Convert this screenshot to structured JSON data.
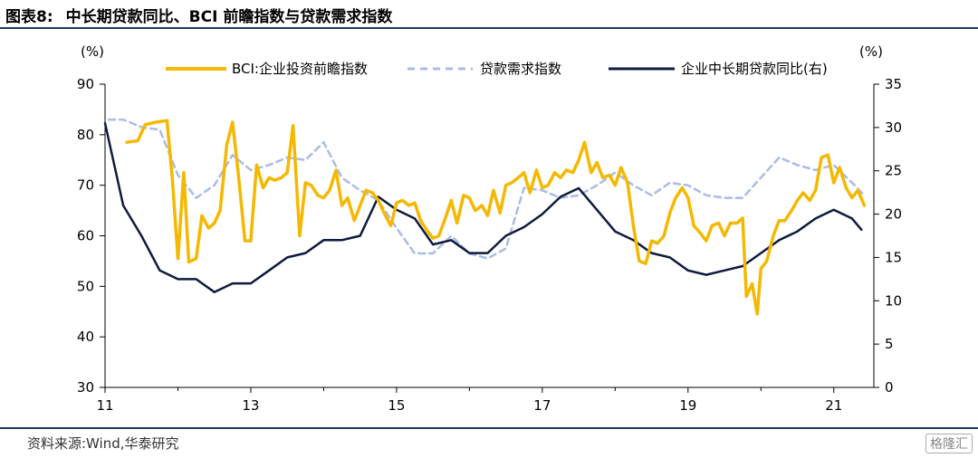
{
  "header": {
    "label": "图表8:",
    "title": "中长期贷款同比、BCI 前瞻指数与贷款需求指数"
  },
  "footer": {
    "source": "资料来源:Wind,华泰研究",
    "watermark": "格隆汇"
  },
  "colors": {
    "bci": "#F5B800",
    "demand": "#A9BCE3",
    "loan": "#0D1B3E",
    "axis": "#000000",
    "rule": "#1F3864"
  },
  "chart_data": {
    "type": "line",
    "y_left": {
      "unit": "(%)",
      "range": [
        30,
        90
      ],
      "ticks": [
        30,
        40,
        50,
        60,
        70,
        80,
        90
      ]
    },
    "y_right": {
      "unit": "(%)",
      "range": [
        0,
        35
      ],
      "ticks": [
        0,
        5,
        10,
        15,
        20,
        25,
        30,
        35
      ]
    },
    "x_axis": {
      "range": [
        2011.0,
        2021.55
      ],
      "ticks": [
        2011,
        2013,
        2015,
        2017,
        2019,
        2021
      ],
      "tick_labels": [
        "11",
        "13",
        "15",
        "17",
        "19",
        "21"
      ]
    },
    "legend_position": "top",
    "series": [
      {
        "name": "BCI:企业投资前瞻指数",
        "axis": "left",
        "style": "solid",
        "points": [
          [
            2011.3,
            78.5
          ],
          [
            2011.45,
            78.8
          ],
          [
            2011.55,
            82.0
          ],
          [
            2011.7,
            82.5
          ],
          [
            2011.85,
            82.8
          ],
          [
            2011.92,
            72.0
          ],
          [
            2012.0,
            55.5
          ],
          [
            2012.08,
            72.5
          ],
          [
            2012.15,
            54.8
          ],
          [
            2012.25,
            55.5
          ],
          [
            2012.33,
            64.0
          ],
          [
            2012.42,
            61.5
          ],
          [
            2012.5,
            62.5
          ],
          [
            2012.58,
            65.0
          ],
          [
            2012.67,
            78.0
          ],
          [
            2012.75,
            82.5
          ],
          [
            2012.83,
            72.0
          ],
          [
            2012.92,
            59.0
          ],
          [
            2013.0,
            59.0
          ],
          [
            2013.08,
            74.0
          ],
          [
            2013.17,
            69.5
          ],
          [
            2013.25,
            71.5
          ],
          [
            2013.33,
            71.0
          ],
          [
            2013.42,
            71.5
          ],
          [
            2013.5,
            72.5
          ],
          [
            2013.58,
            81.8
          ],
          [
            2013.67,
            60.0
          ],
          [
            2013.75,
            70.5
          ],
          [
            2013.83,
            70.0
          ],
          [
            2013.92,
            68.0
          ],
          [
            2014.0,
            67.5
          ],
          [
            2014.08,
            69.0
          ],
          [
            2014.17,
            73.0
          ],
          [
            2014.25,
            66.0
          ],
          [
            2014.33,
            67.5
          ],
          [
            2014.42,
            63.0
          ],
          [
            2014.5,
            66.0
          ],
          [
            2014.58,
            69.0
          ],
          [
            2014.67,
            68.5
          ],
          [
            2014.75,
            67.0
          ],
          [
            2014.83,
            64.5
          ],
          [
            2014.92,
            62.0
          ],
          [
            2015.0,
            66.5
          ],
          [
            2015.08,
            67.0
          ],
          [
            2015.17,
            66.0
          ],
          [
            2015.25,
            66.5
          ],
          [
            2015.33,
            63.0
          ],
          [
            2015.42,
            61.0
          ],
          [
            2015.5,
            59.5
          ],
          [
            2015.58,
            60.0
          ],
          [
            2015.67,
            63.5
          ],
          [
            2015.75,
            67.0
          ],
          [
            2015.83,
            62.5
          ],
          [
            2015.92,
            68.0
          ],
          [
            2016.0,
            67.5
          ],
          [
            2016.08,
            65.0
          ],
          [
            2016.17,
            66.0
          ],
          [
            2016.25,
            64.0
          ],
          [
            2016.33,
            69.0
          ],
          [
            2016.42,
            64.5
          ],
          [
            2016.5,
            70.0
          ],
          [
            2016.58,
            70.5
          ],
          [
            2016.67,
            71.5
          ],
          [
            2016.75,
            72.5
          ],
          [
            2016.83,
            68.5
          ],
          [
            2016.92,
            73.0
          ],
          [
            2017.0,
            69.5
          ],
          [
            2017.08,
            70.0
          ],
          [
            2017.17,
            72.5
          ],
          [
            2017.25,
            71.5
          ],
          [
            2017.33,
            73.0
          ],
          [
            2017.42,
            72.5
          ],
          [
            2017.5,
            75.0
          ],
          [
            2017.58,
            78.5
          ],
          [
            2017.67,
            72.5
          ],
          [
            2017.75,
            74.5
          ],
          [
            2017.83,
            71.5
          ],
          [
            2017.92,
            72.0
          ],
          [
            2018.0,
            70.0
          ],
          [
            2018.08,
            73.5
          ],
          [
            2018.17,
            70.5
          ],
          [
            2018.25,
            62.0
          ],
          [
            2018.33,
            55.0
          ],
          [
            2018.42,
            54.5
          ],
          [
            2018.5,
            59.0
          ],
          [
            2018.58,
            58.5
          ],
          [
            2018.67,
            60.0
          ],
          [
            2018.75,
            64.5
          ],
          [
            2018.83,
            67.5
          ],
          [
            2018.92,
            69.5
          ],
          [
            2019.0,
            67.5
          ],
          [
            2019.08,
            62.0
          ],
          [
            2019.17,
            60.5
          ],
          [
            2019.25,
            59.0
          ],
          [
            2019.33,
            62.0
          ],
          [
            2019.42,
            62.5
          ],
          [
            2019.5,
            60.0
          ],
          [
            2019.58,
            62.5
          ],
          [
            2019.67,
            62.5
          ],
          [
            2019.75,
            63.5
          ],
          [
            2019.8,
            48.0
          ],
          [
            2019.88,
            50.5
          ],
          [
            2019.95,
            44.5
          ],
          [
            2020.0,
            53.5
          ],
          [
            2020.08,
            55.0
          ],
          [
            2020.17,
            60.0
          ],
          [
            2020.25,
            63.0
          ],
          [
            2020.33,
            63.0
          ],
          [
            2020.42,
            65.0
          ],
          [
            2020.5,
            67.0
          ],
          [
            2020.58,
            68.5
          ],
          [
            2020.67,
            67.0
          ],
          [
            2020.75,
            69.0
          ],
          [
            2020.83,
            75.5
          ],
          [
            2020.92,
            76.0
          ],
          [
            2021.0,
            70.5
          ],
          [
            2021.08,
            73.5
          ],
          [
            2021.17,
            69.5
          ],
          [
            2021.25,
            67.5
          ],
          [
            2021.33,
            69.0
          ],
          [
            2021.42,
            66.0
          ]
        ]
      },
      {
        "name": "贷款需求指数",
        "axis": "left",
        "style": "dashed",
        "points": [
          [
            2011.05,
            83.0
          ],
          [
            2011.25,
            83.0
          ],
          [
            2011.5,
            81.5
          ],
          [
            2011.75,
            81.0
          ],
          [
            2012.0,
            72.0
          ],
          [
            2012.25,
            67.5
          ],
          [
            2012.5,
            70.0
          ],
          [
            2012.75,
            76.0
          ],
          [
            2013.0,
            73.0
          ],
          [
            2013.25,
            74.0
          ],
          [
            2013.5,
            75.5
          ],
          [
            2013.75,
            75.0
          ],
          [
            2014.0,
            78.5
          ],
          [
            2014.25,
            71.5
          ],
          [
            2014.5,
            69.0
          ],
          [
            2014.75,
            67.0
          ],
          [
            2015.0,
            61.5
          ],
          [
            2015.25,
            56.5
          ],
          [
            2015.5,
            56.5
          ],
          [
            2015.75,
            60.0
          ],
          [
            2016.0,
            56.5
          ],
          [
            2016.25,
            55.5
          ],
          [
            2016.5,
            57.5
          ],
          [
            2016.75,
            69.5
          ],
          [
            2017.0,
            69.0
          ],
          [
            2017.25,
            67.5
          ],
          [
            2017.5,
            68.0
          ],
          [
            2017.75,
            70.0
          ],
          [
            2018.0,
            72.5
          ],
          [
            2018.25,
            70.0
          ],
          [
            2018.5,
            68.0
          ],
          [
            2018.75,
            70.5
          ],
          [
            2019.0,
            70.0
          ],
          [
            2019.25,
            68.0
          ],
          [
            2019.5,
            67.5
          ],
          [
            2019.75,
            67.5
          ],
          [
            2020.0,
            71.5
          ],
          [
            2020.25,
            75.5
          ],
          [
            2020.5,
            74.0
          ],
          [
            2020.75,
            73.0
          ],
          [
            2021.0,
            74.0
          ],
          [
            2021.25,
            70.5
          ],
          [
            2021.42,
            68.0
          ]
        ]
      },
      {
        "name": "企业中长期贷款同比(右)",
        "axis": "right",
        "style": "solid",
        "points": [
          [
            2011.0,
            30.5
          ],
          [
            2011.25,
            21.0
          ],
          [
            2011.5,
            17.5
          ],
          [
            2011.75,
            13.5
          ],
          [
            2012.0,
            12.5
          ],
          [
            2012.25,
            12.5
          ],
          [
            2012.5,
            11.0
          ],
          [
            2012.75,
            12.0
          ],
          [
            2013.0,
            12.0
          ],
          [
            2013.25,
            13.5
          ],
          [
            2013.5,
            15.0
          ],
          [
            2013.75,
            15.5
          ],
          [
            2014.0,
            17.0
          ],
          [
            2014.25,
            17.0
          ],
          [
            2014.5,
            17.5
          ],
          [
            2014.75,
            22.0
          ],
          [
            2015.0,
            20.5
          ],
          [
            2015.25,
            19.5
          ],
          [
            2015.5,
            16.5
          ],
          [
            2015.75,
            17.0
          ],
          [
            2016.0,
            15.5
          ],
          [
            2016.25,
            15.5
          ],
          [
            2016.5,
            17.5
          ],
          [
            2016.75,
            18.5
          ],
          [
            2017.0,
            20.0
          ],
          [
            2017.25,
            22.0
          ],
          [
            2017.5,
            23.0
          ],
          [
            2017.75,
            20.5
          ],
          [
            2018.0,
            18.0
          ],
          [
            2018.25,
            17.0
          ],
          [
            2018.5,
            15.5
          ],
          [
            2018.75,
            15.0
          ],
          [
            2019.0,
            13.5
          ],
          [
            2019.25,
            13.0
          ],
          [
            2019.5,
            13.5
          ],
          [
            2019.75,
            14.0
          ],
          [
            2020.0,
            15.5
          ],
          [
            2020.25,
            17.0
          ],
          [
            2020.5,
            18.0
          ],
          [
            2020.75,
            19.5
          ],
          [
            2021.0,
            20.5
          ],
          [
            2021.25,
            19.5
          ],
          [
            2021.38,
            18.2
          ]
        ]
      }
    ]
  }
}
